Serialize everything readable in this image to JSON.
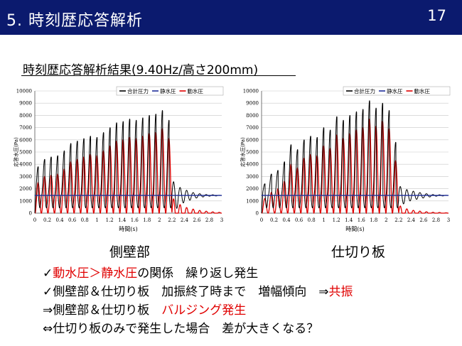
{
  "header": {
    "title": "5. 時刻歴応答解析",
    "page_number": "17",
    "background": "#0b1a6e"
  },
  "subtitle": "時刻歴応答解析結果(9.40Hz/高さ200mm)",
  "panels": [
    "側壁部",
    "仕切り板"
  ],
  "bullets": [
    [
      {
        "text": "✓",
        "red": false
      },
      {
        "text": "動水圧＞静水圧",
        "red": true
      },
      {
        "text": "の関係　繰り返し発生",
        "red": false
      }
    ],
    [
      {
        "text": "✓側壁部＆仕切り板　加振終了時まで　増幅傾向　⇒",
        "red": false
      },
      {
        "text": "共振",
        "red": true
      }
    ],
    [
      {
        "text": "⇒側壁部＆仕切り板　",
        "red": false
      },
      {
        "text": "バルジング発生",
        "red": true
      }
    ],
    [
      {
        "text": "⇔仕切り板のみで発生した場合　差が大きくなる？",
        "red": false
      }
    ]
  ],
  "colors": {
    "total": "#000000",
    "static": "#1f2f9a",
    "dynamic": "#e00000",
    "accent_red": "#e00000"
  },
  "chart_data": [
    {
      "type": "line",
      "name": "側壁部",
      "xlabel": "時間(s)",
      "ylabel": "応答水圧(Pa)",
      "xlim": [
        0,
        3
      ],
      "ylim": [
        0,
        10000
      ],
      "xticks": [
        "0",
        "0.2",
        "0.4",
        "0.6",
        "0.8",
        "1",
        "1.2",
        "1.4",
        "1.6",
        "1.8",
        "2",
        "2.2",
        "2.4",
        "2.6",
        "2.8",
        "3"
      ],
      "yticks": [
        "0",
        "1000",
        "2000",
        "3000",
        "4000",
        "5000",
        "6000",
        "7000",
        "8000",
        "9000",
        "10000"
      ],
      "grid": true,
      "legend": "top-right",
      "excitation_end": 2.2,
      "series": [
        {
          "name": "合計圧力",
          "color": "#000000",
          "peaks": [
            3800,
            4400,
            4600,
            4700,
            5100,
            5700,
            5900,
            6100,
            6300,
            6200,
            6600,
            7000,
            7400,
            7500,
            7700,
            7600,
            7800,
            8000,
            8100,
            8400,
            7600
          ],
          "decay": [
            2600,
            2200,
            2000,
            1800,
            1700,
            1600,
            1600,
            1500,
            1500
          ]
        },
        {
          "name": "静水圧",
          "color": "#1f2f9a",
          "value": 1450
        },
        {
          "name": "動水圧",
          "color": "#e00000",
          "peaks": [
            2500,
            3000,
            3100,
            3200,
            3600,
            4200,
            4400,
            4600,
            4800,
            4700,
            5100,
            5500,
            5900,
            6000,
            6200,
            6100,
            6300,
            6500,
            6600,
            6900,
            6100
          ],
          "decay": [
            1200,
            800,
            600,
            500,
            400,
            350,
            300,
            250,
            250
          ]
        }
      ]
    },
    {
      "type": "line",
      "name": "仕切り板",
      "xlabel": "時間(s)",
      "ylabel": "応答水圧(Pa)",
      "xlim": [
        0,
        3
      ],
      "ylim": [
        0,
        10000
      ],
      "xticks": [
        "0",
        "0.2",
        "0.4",
        "0.6",
        "0.8",
        "1",
        "1.2",
        "1.4",
        "1.6",
        "1.8",
        "2",
        "2.2",
        "2.4",
        "2.6",
        "2.8",
        "3"
      ],
      "yticks": [
        "0",
        "1000",
        "2000",
        "3000",
        "4000",
        "5000",
        "6000",
        "7000",
        "8000",
        "9000",
        "10000"
      ],
      "grid": true,
      "legend": "top-right",
      "excitation_end": 2.2,
      "series": [
        {
          "name": "合計圧力",
          "color": "#000000",
          "peaks": [
            2400,
            3200,
            3500,
            4200,
            5600,
            5200,
            6000,
            6300,
            6200,
            7000,
            6800,
            7900,
            7600,
            8000,
            8300,
            8500,
            9200,
            8600,
            9000,
            8400,
            5800
          ],
          "decay": [
            2200,
            2000,
            1900,
            1800,
            1700,
            1600,
            1600,
            1500,
            1500
          ]
        },
        {
          "name": "静水圧",
          "color": "#1f2f9a",
          "value": 1450
        },
        {
          "name": "動水圧",
          "color": "#e00000",
          "peaks": [
            1200,
            1700,
            2000,
            2600,
            4000,
            3700,
            4500,
            4800,
            4700,
            5500,
            5300,
            6400,
            6100,
            6500,
            6800,
            7000,
            7700,
            7100,
            7500,
            6900,
            4300
          ],
          "decay": [
            600,
            400,
            300,
            250,
            200,
            150,
            150,
            100,
            100
          ]
        }
      ]
    }
  ]
}
